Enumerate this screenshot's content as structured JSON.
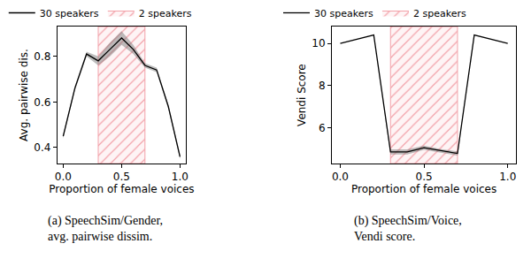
{
  "chart_data": [
    {
      "type": "line",
      "x_label": "Proportion of female voices",
      "y_label": "Avg. pairwise dis.",
      "caption": [
        "(a) SpeechSim/Gender,",
        "avg. pairwise dissim."
      ],
      "x": [
        0.0,
        0.1,
        0.2,
        0.3,
        0.4,
        0.5,
        0.6,
        0.7,
        0.8,
        0.9,
        1.0
      ],
      "series": [
        {
          "name": "30 speakers",
          "color": "#000000",
          "values": [
            0.45,
            0.66,
            0.81,
            0.78,
            0.83,
            0.88,
            0.83,
            0.76,
            0.74,
            0.58,
            0.36
          ],
          "error": [
            0.01,
            0.01,
            0.01,
            0.02,
            0.03,
            0.03,
            0.02,
            0.01,
            0.01,
            0.01,
            0.01
          ]
        }
      ],
      "region": {
        "name": "2 speakers",
        "x0": 0.3,
        "x1": 0.7,
        "color": "#f2a0a8"
      },
      "xlim": [
        -0.05,
        1.05
      ],
      "xticks": [
        {
          "value": 0,
          "label": "0.0"
        },
        {
          "value": 0.5,
          "label": "0.5"
        },
        {
          "value": 1,
          "label": "1.0"
        }
      ],
      "ylim": [
        0.33,
        0.93
      ],
      "yticks": [
        0.4,
        0.6,
        0.8
      ],
      "grid": false,
      "legend": "top"
    },
    {
      "type": "line",
      "x_label": "Proportion of female voices",
      "y_label": "Vendi Score",
      "caption": [
        "(b) SpeechSim/Voice,",
        "Vendi score."
      ],
      "x": [
        0.0,
        0.2,
        0.3,
        0.4,
        0.5,
        0.6,
        0.7,
        0.8,
        1.0
      ],
      "series": [
        {
          "name": "30 speakers",
          "color": "#000000",
          "values": [
            10.0,
            10.4,
            4.85,
            4.85,
            5.05,
            4.9,
            4.78,
            10.4,
            10.0
          ],
          "error": [
            0,
            0,
            0.12,
            0.12,
            0.1,
            0.08,
            0.1,
            0,
            0
          ]
        }
      ],
      "region": {
        "name": "2 speakers",
        "x0": 0.3,
        "x1": 0.7,
        "color": "#f2a0a8"
      },
      "xlim": [
        -0.05,
        1.05
      ],
      "xticks": [
        {
          "value": 0,
          "label": "0.0"
        },
        {
          "value": 0.5,
          "label": "0.5"
        },
        {
          "value": 1,
          "label": "1.0"
        }
      ],
      "ylim": [
        4.3,
        10.8
      ],
      "yticks": [
        6,
        8,
        10
      ],
      "grid": false,
      "legend": "top"
    }
  ]
}
